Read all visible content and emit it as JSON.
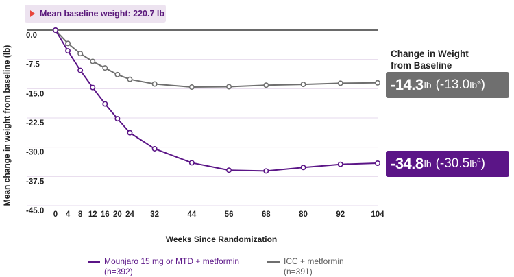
{
  "baseline_note": "Mean baseline weight: 220.7 lb",
  "change_title": {
    "line1": "Change in Weight",
    "line2": "from Baseline"
  },
  "results": {
    "icc": {
      "value": "-14.3",
      "unit": "lb",
      "alt_value": "(-13.0",
      "alt_unit": "lb",
      "alt_sup": "a",
      "alt_close": ")"
    },
    "mounjaro": {
      "value": "-34.8",
      "unit": "lb",
      "alt_value": "(-30.5",
      "alt_unit": "lb",
      "alt_sup": "a",
      "alt_close": ")"
    }
  },
  "legend": {
    "mounjaro": {
      "line1": "Mounjaro 15 mg or MTD + metformin",
      "line2": "(n=392)"
    },
    "icc": {
      "line1": "ICC + metformin",
      "line2": "(n=391)"
    }
  },
  "colors": {
    "mounjaro": "#5b1587",
    "icc": "#6f6f6f",
    "grid": "#e6d9ec",
    "axis": "#111111"
  },
  "chart_data": {
    "type": "line",
    "xlabel": "Weeks Since Randomization",
    "ylabel": "Mean change in weight from baseline (lb)",
    "x_ticks": [
      0,
      4,
      8,
      12,
      16,
      20,
      24,
      32,
      44,
      56,
      68,
      80,
      92,
      104
    ],
    "y_ticks": [
      "0.0",
      "-7.5",
      "-15.0",
      "-22.5",
      "-30.0",
      "-37.5",
      "-45.0"
    ],
    "y_tick_values": [
      0,
      -7.5,
      -15,
      -22.5,
      -30,
      -37.5,
      -45
    ],
    "xlim": [
      0,
      104
    ],
    "ylim": [
      -45,
      0
    ],
    "grid": "horizontal",
    "series": [
      {
        "key": "mounjaro",
        "name": "Mounjaro 15 mg or MTD + metformin",
        "color": "#5b1587",
        "x": [
          0,
          4,
          8,
          12,
          16,
          20,
          24,
          32,
          44,
          56,
          68,
          80,
          92,
          104
        ],
        "y": [
          0,
          -5.3,
          -10.3,
          -14.7,
          -18.9,
          -22.7,
          -26.3,
          -30.4,
          -34.0,
          -35.9,
          -36.1,
          -35.2,
          -34.4,
          -34.1
        ]
      },
      {
        "key": "icc",
        "name": "ICC + metformin",
        "color": "#6f6f6f",
        "x": [
          0,
          4,
          8,
          12,
          16,
          20,
          24,
          32,
          44,
          56,
          68,
          80,
          92,
          104
        ],
        "y": [
          0,
          -3.4,
          -6.0,
          -8.0,
          -9.7,
          -11.4,
          -12.6,
          -13.8,
          -14.6,
          -14.5,
          -14.1,
          -13.9,
          -13.6,
          -13.5
        ]
      }
    ]
  }
}
